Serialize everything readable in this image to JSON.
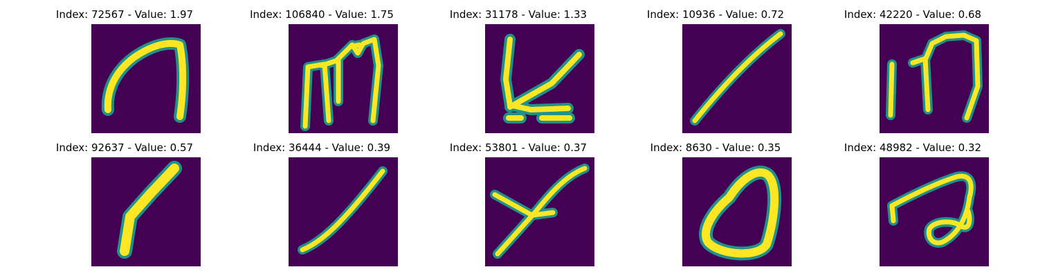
{
  "background_color": "#440154",
  "stroke_color": "#fde725",
  "edge_color": "#21918c",
  "panels": [
    {
      "title": "Index: 72567 - Value: 1.97",
      "glyph": "arch-shape"
    },
    {
      "title": "Index: 106840 - Value: 1.75",
      "glyph": "m-shape"
    },
    {
      "title": "Index: 31178 - Value: 1.33",
      "glyph": "k-like-shape"
    },
    {
      "title": "Index: 10936 - Value: 0.72",
      "glyph": "diagonal-stroke"
    },
    {
      "title": "Index: 42220 - Value: 0.68",
      "glyph": "bar-and-m-shape"
    },
    {
      "title": "Index: 92637 - Value: 0.57",
      "glyph": "one-shape"
    },
    {
      "title": "Index: 36444 - Value: 0.39",
      "glyph": "thin-diagonal-stroke"
    },
    {
      "title": "Index: 53801 - Value: 0.37",
      "glyph": "y-shape"
    },
    {
      "title": "Index: 8630 - Value: 0.35",
      "glyph": "zero-shape"
    },
    {
      "title": "Index: 48982 - Value: 0.32",
      "glyph": "a-shape"
    }
  ]
}
